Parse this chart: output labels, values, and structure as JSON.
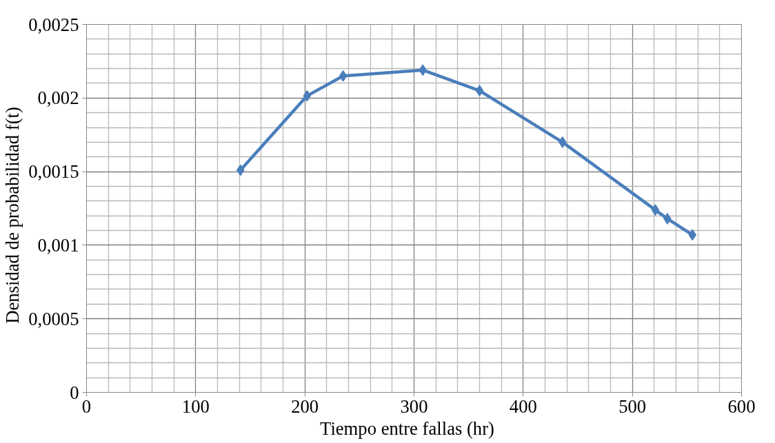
{
  "chart_data": {
    "type": "line",
    "xlabel": "Tiempo  entre  fallas  (hr)",
    "ylabel": "Densidad  de  probabilidad  f(t)",
    "x": [
      141,
      202,
      235,
      308,
      360,
      436,
      521,
      532,
      555
    ],
    "series": [
      {
        "color": "#4a7ebb",
        "values": [
          0.00151,
          0.002015,
          0.00215,
          0.00219,
          0.00205,
          0.0017,
          0.00124,
          0.00118,
          0.00107
        ]
      }
    ],
    "xlim": [
      0,
      600
    ],
    "xticks": [
      0,
      100,
      200,
      300,
      400,
      500,
      600
    ],
    "ylim": [
      0,
      0.0025
    ],
    "yticks": [
      0,
      {
        "value": 0.0005,
        "label": "0,0005"
      },
      {
        "value": 0.001,
        "label": "0,001"
      },
      {
        "value": 0.0015,
        "label": "0,0015"
      },
      {
        "value": 0.002,
        "label": "0,002"
      },
      {
        "value": 0.0025,
        "label": "0,0025"
      }
    ],
    "grid": true,
    "marker": "diamond",
    "line_style": "solid"
  }
}
